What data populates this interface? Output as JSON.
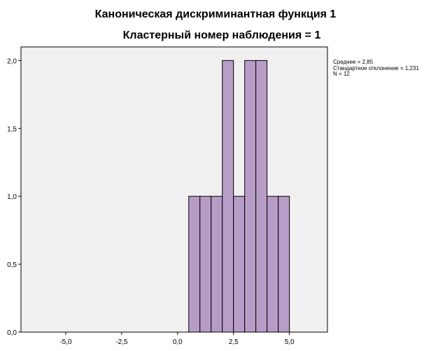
{
  "chart_data": {
    "type": "bar",
    "title": "Каноническая дискриминантная функция 1",
    "subtitle": "Кластерный номер наблюдения = 1",
    "xlabel": "",
    "ylabel": "",
    "xlim": [
      -7.0,
      6.7
    ],
    "ylim": [
      0,
      2.1
    ],
    "x_ticks": [
      -5.0,
      -2.5,
      0.0,
      2.5,
      5.0
    ],
    "x_tick_labels": [
      "-5,0",
      "-2,5",
      "0,0",
      "2,5",
      "5,0"
    ],
    "y_ticks": [
      0.0,
      0.5,
      1.0,
      1.5,
      2.0
    ],
    "y_tick_labels": [
      "0,0",
      "0,5",
      "1,0",
      "1,5",
      "2,0"
    ],
    "bin_width": 0.5,
    "bin_starts": [
      0.5,
      1.0,
      1.5,
      2.0,
      2.5,
      3.0,
      3.5,
      4.0,
      4.5
    ],
    "values": [
      1,
      1,
      1,
      2,
      1,
      2,
      2,
      1,
      1
    ],
    "bar_color": "#b89cc8",
    "plot_background": "#f0f0f0",
    "grid": false,
    "stats": [
      "Среднее = 2,85",
      "Стандартное отклонение = 1,231",
      "N = 12"
    ]
  }
}
